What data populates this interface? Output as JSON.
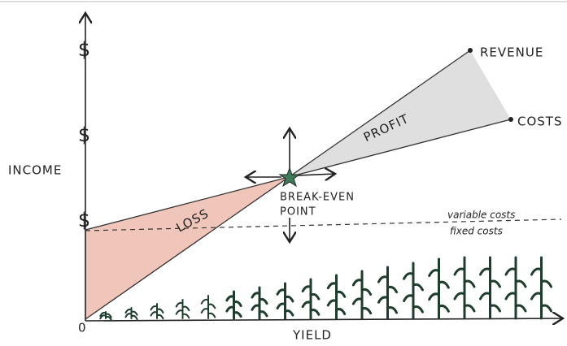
{
  "axes": {
    "y_label": "INCOME",
    "x_label": "YIELD",
    "origin": "0",
    "y_marks": [
      "$",
      "$",
      "$"
    ]
  },
  "lines": {
    "revenue": "REVENUE",
    "costs": "COSTS"
  },
  "regions": {
    "profit": "PROFIT",
    "loss": "LOSS"
  },
  "break_even": {
    "line1": "BREAK-EVEN",
    "line2": "POINT"
  },
  "divider": {
    "above": "variable costs",
    "below": "fixed costs"
  }
}
